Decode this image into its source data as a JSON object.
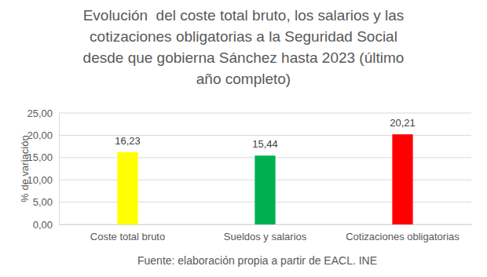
{
  "chart_data": {
    "type": "bar",
    "title": "Evolución  del coste total bruto, los salarios y las\ncotizaciones obligatorias a la Seguridad Social\ndesde que gobierna Sánchez hasta 2023 (último\naño completo)",
    "ylabel": "% de variación",
    "source": "Fuente: elaboración propia a partir de EACL. INE",
    "categories": [
      "Coste total bruto",
      "Sueldos y salarios",
      "Cotizaciones obligatorias"
    ],
    "values": [
      16.23,
      15.44,
      20.21
    ],
    "value_labels": [
      "16,23",
      "15,44",
      "20,21"
    ],
    "colors": [
      "#ffff00",
      "#00b050",
      "#ff0000"
    ],
    "ylim": [
      0,
      25
    ],
    "yticks": [
      {
        "value": 0,
        "label": "0,00"
      },
      {
        "value": 5,
        "label": "5,00"
      },
      {
        "value": 10,
        "label": "10,00"
      },
      {
        "value": 15,
        "label": "15,00"
      },
      {
        "value": 20,
        "label": "20,00"
      },
      {
        "value": 25,
        "label": "25,00"
      }
    ],
    "grid": true,
    "data_labels": true
  }
}
